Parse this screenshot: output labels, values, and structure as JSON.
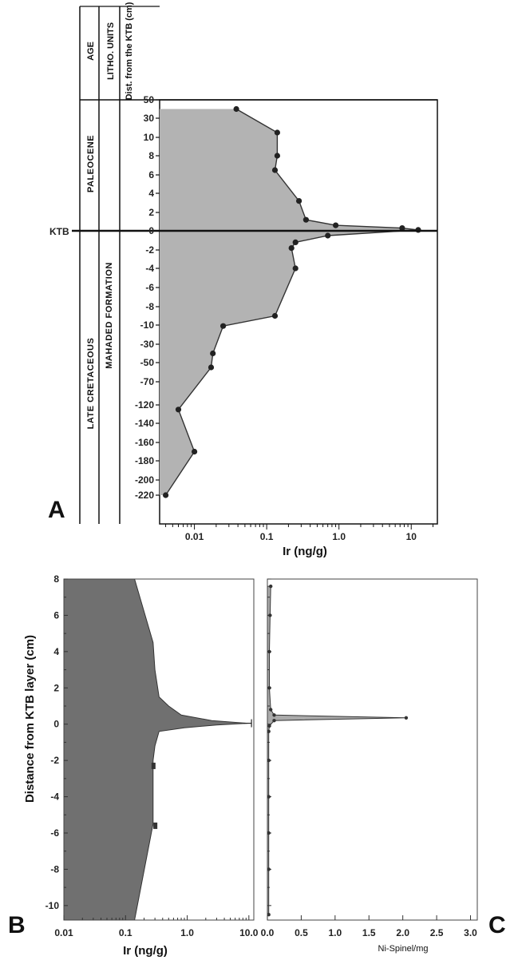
{
  "chart_data": [
    {
      "panel": "A",
      "type": "area",
      "x_label": "Ir (ng/g)",
      "x_scale": "log",
      "x_ticks": [
        "0.01",
        "0.1",
        "1.0",
        "10"
      ],
      "y_scale": "categorical",
      "y_ticks": [
        "50",
        "30",
        "10",
        "8",
        "6",
        "4",
        "2",
        "0",
        "-2",
        "-4",
        "-6",
        "-8",
        "-10",
        "-30",
        "-50",
        "-70",
        "-120",
        "-140",
        "-160",
        "-180",
        "-200",
        "-220"
      ],
      "columns": {
        "age_header": "AGE",
        "litho_header": "LITHO. UNITS",
        "dist_header": "Dist. from the KTB (cm)"
      },
      "units": {
        "age_upper": "PALEOCENE",
        "age_lower": "LATE CRETACEOUS",
        "litho_lower": "MAHADED FORMATION"
      },
      "boundary_label": "KTB",
      "series": [
        {
          "y_ticks": [
            "40",
            "15",
            "8",
            "6.5",
            "3.2",
            "1.2",
            "0.6",
            "0.3",
            "0.1",
            "-0.5",
            "-1.2",
            "-1.8",
            "-4",
            "-9",
            "-11",
            "-40",
            "-55",
            "-125",
            "-170",
            "-220"
          ],
          "values": [
            0.038,
            0.14,
            0.14,
            0.13,
            0.28,
            0.35,
            0.9,
            7.5,
            12.5,
            0.7,
            0.25,
            0.22,
            0.25,
            0.13,
            0.025,
            0.018,
            0.017,
            0.006,
            0.01,
            0.004
          ]
        }
      ],
      "colors": {
        "fill": "#b3b3b3",
        "line": "#333333",
        "marker": "#222222"
      }
    },
    {
      "panel": "B",
      "type": "area",
      "x_label": "Ir (ng/g)",
      "x_scale": "log",
      "x_ticks": [
        "0.01",
        "0.1",
        "1.0",
        "10.0"
      ],
      "y_label": "Distance from KTB layer (cm)",
      "y_range": [
        -10.8,
        8
      ],
      "y_ticks": [
        "8",
        "6",
        "4",
        "2",
        "0",
        "-2",
        "-4",
        "-6",
        "-8",
        "-10"
      ],
      "series": [
        {
          "y": [
            8,
            4.5,
            3,
            1.5,
            1,
            0.5,
            0.2,
            0.05,
            -0.05,
            -0.2,
            -0.4,
            -1.2,
            -2,
            -5.5,
            -10.8
          ],
          "x": [
            0.14,
            0.28,
            0.3,
            0.35,
            0.5,
            0.8,
            2.5,
            9.5,
            3,
            0.9,
            0.35,
            0.3,
            0.28,
            0.28,
            0.14
          ]
        }
      ],
      "colors": {
        "fill": "#707070",
        "line": "#333333"
      }
    },
    {
      "panel": "C",
      "type": "area",
      "x_label": "Ni-Spinel/mg",
      "x_range": [
        0,
        3.0
      ],
      "x_ticks": [
        "0.0",
        "0.5",
        "1.0",
        "1.5",
        "2.0",
        "2.5",
        "3.0"
      ],
      "y_range": [
        -10.8,
        8
      ],
      "series": [
        {
          "y": [
            7.6,
            6,
            4,
            2,
            0.8,
            0.5,
            0.35,
            0.2,
            -0.1,
            -0.4,
            -2,
            -4,
            -6,
            -8,
            -10.5
          ],
          "x": [
            0.05,
            0.04,
            0.03,
            0.03,
            0.05,
            0.1,
            2.05,
            0.1,
            0.03,
            0.02,
            0.02,
            0.02,
            0.02,
            0.02,
            0.02
          ]
        }
      ],
      "colors": {
        "fill": "#aaaaaa",
        "line": "#333333",
        "marker": "#333333"
      }
    }
  ]
}
